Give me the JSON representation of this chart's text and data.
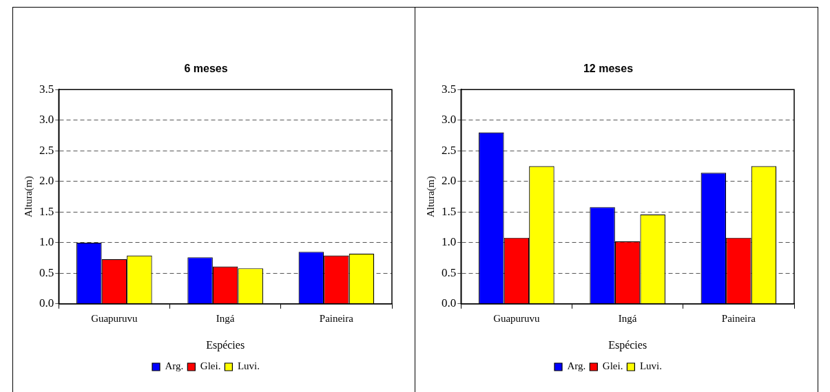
{
  "chart_data": [
    {
      "type": "bar",
      "title": "6 meses",
      "xlabel": "Espécies",
      "ylabel": "Altura(m)",
      "categories": [
        "Guapuruvu",
        "Ingá",
        "Paineira"
      ],
      "series": [
        {
          "name": "Arg.",
          "color": "#0000ff",
          "values": [
            1.0,
            0.76,
            0.85
          ]
        },
        {
          "name": "Glei.",
          "color": "#ff0000",
          "values": [
            0.73,
            0.61,
            0.79
          ]
        },
        {
          "name": "Luvi.",
          "color": "#ffff00",
          "values": [
            0.79,
            0.58,
            0.82
          ]
        }
      ],
      "ylim": [
        0,
        3.5
      ],
      "yticks": [
        {
          "value": 0,
          "label": "0.0"
        },
        {
          "value": 0.5,
          "label": "0.5"
        },
        {
          "value": 1,
          "label": "1.0"
        },
        {
          "value": 1.5,
          "label": "1.5"
        },
        {
          "value": 2,
          "label": "2.0"
        },
        {
          "value": 2.5,
          "label": "2.5"
        },
        {
          "value": 3,
          "label": "3.0"
        },
        {
          "value": 3.5,
          "label": "3.5"
        }
      ],
      "grid": "y",
      "legend": "bottom"
    },
    {
      "type": "bar",
      "title": "12 meses",
      "xlabel": "Espécies",
      "ylabel": "Altura(m)",
      "categories": [
        "Guapuruvu",
        "Ingá",
        "Paineira"
      ],
      "series": [
        {
          "name": "Arg.",
          "color": "#0000ff",
          "values": [
            2.8,
            1.58,
            2.14
          ]
        },
        {
          "name": "Glei.",
          "color": "#ff0000",
          "values": [
            1.08,
            1.02,
            1.08
          ]
        },
        {
          "name": "Luvi.",
          "color": "#ffff00",
          "values": [
            2.25,
            1.46,
            2.25
          ]
        }
      ],
      "ylim": [
        0,
        3.5
      ],
      "yticks": [
        {
          "value": 0,
          "label": "0.0"
        },
        {
          "value": 0.5,
          "label": "0.5"
        },
        {
          "value": 1,
          "label": "1.0"
        },
        {
          "value": 1.5,
          "label": "1.5"
        },
        {
          "value": 2,
          "label": "2.0"
        },
        {
          "value": 2.5,
          "label": "2.5"
        },
        {
          "value": 3,
          "label": "3.0"
        },
        {
          "value": 3.5,
          "label": "3.5"
        }
      ],
      "grid": "y",
      "legend": "bottom"
    }
  ]
}
